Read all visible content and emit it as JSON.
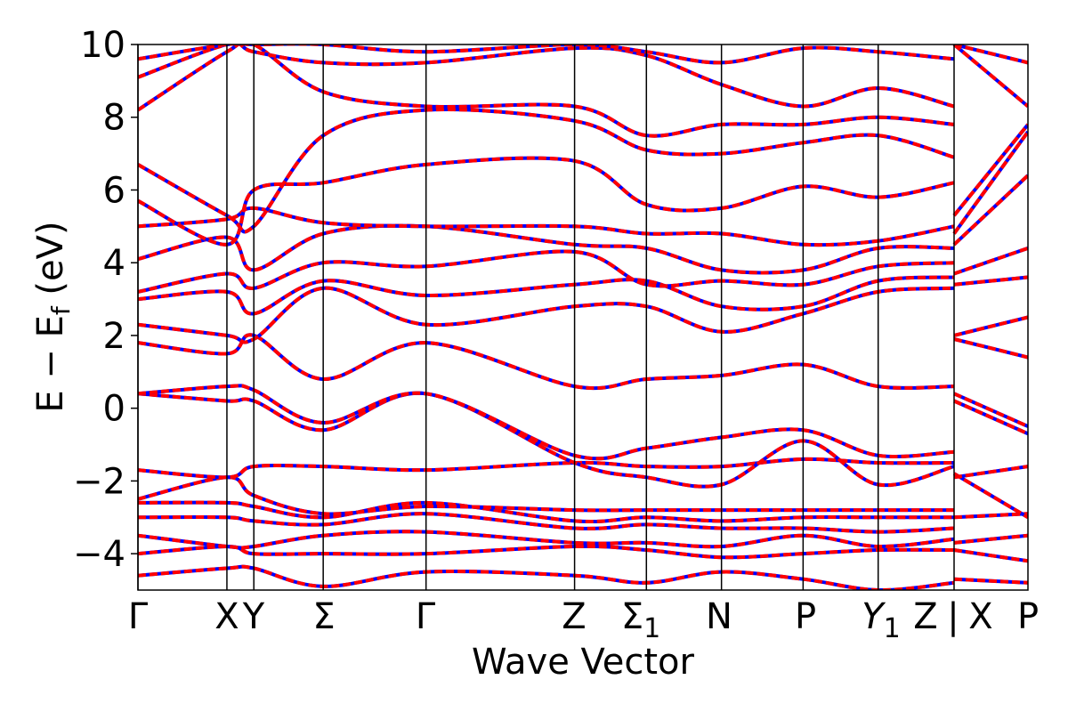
{
  "chart_data": {
    "type": "line",
    "title": "",
    "xlabel": "Wave Vector",
    "ylabel": "E − E",
    "ylabel_subscript": "f",
    "ylabel_unit": "(eV)",
    "ylim": [
      -5,
      10
    ],
    "x_range": [
      0,
      1
    ],
    "yticks": [
      -4,
      -2,
      0,
      2,
      4,
      6,
      8,
      10
    ],
    "ytick_labels": [
      "−4",
      "−2",
      "0",
      "2",
      "4",
      "6",
      "8",
      "10"
    ],
    "grid": false,
    "legend": "none",
    "colors": {
      "band_solid": "#0000ff",
      "band_dashed": "#ff0000",
      "divider": "#000000"
    },
    "kpoints": [
      {
        "x": 0.0,
        "label": "Γ"
      },
      {
        "x": 0.109,
        "label": "X"
      },
      {
        "x": 0.142,
        "label": "Y"
      },
      {
        "x": 0.227,
        "label": "Σ"
      },
      {
        "x": 0.353,
        "label": "Γ"
      },
      {
        "x": 0.535,
        "label": "Z"
      },
      {
        "x": 0.623,
        "label": "Σ",
        "sub": "1"
      },
      {
        "x": 0.715,
        "label": "N"
      },
      {
        "x": 0.815,
        "label": "P"
      },
      {
        "x": 0.907,
        "label": "Y",
        "sub": "1"
      },
      {
        "x": 1.0,
        "label": "Z"
      },
      {
        "x": 1.0,
        "label": "|"
      },
      {
        "x": 1.0,
        "label": "X"
      },
      {
        "x": 1.0,
        "label": "P"
      }
    ],
    "segment_breaks": [
      0.0,
      0.109,
      0.142,
      0.227,
      0.353,
      0.535,
      0.623,
      0.715,
      0.815,
      0.907,
      1.0
    ],
    "tail_segment": [
      1.0,
      1.09
    ],
    "bands": [
      {
        "name": "b1",
        "points": [
          [
            0,
            -4.6
          ],
          [
            0.109,
            -4.4
          ],
          [
            0.142,
            -4.4
          ],
          [
            0.227,
            -4.9
          ],
          [
            0.353,
            -4.5
          ],
          [
            0.535,
            -4.6
          ],
          [
            0.623,
            -4.8
          ],
          [
            0.715,
            -4.5
          ],
          [
            0.815,
            -4.7
          ],
          [
            0.907,
            -5.0
          ],
          [
            1.0,
            -4.8
          ]
        ]
      },
      {
        "name": "b2",
        "points": [
          [
            0,
            -4.0
          ],
          [
            0.109,
            -3.8
          ],
          [
            0.142,
            -4.0
          ],
          [
            0.227,
            -4.0
          ],
          [
            0.353,
            -4.0
          ],
          [
            0.535,
            -3.8
          ],
          [
            0.623,
            -3.9
          ],
          [
            0.715,
            -4.1
          ],
          [
            0.815,
            -4.0
          ],
          [
            0.907,
            -3.9
          ],
          [
            1.0,
            -3.9
          ]
        ]
      },
      {
        "name": "b3",
        "points": [
          [
            0,
            -3.5
          ],
          [
            0.109,
            -3.8
          ],
          [
            0.142,
            -3.8
          ],
          [
            0.227,
            -3.5
          ],
          [
            0.353,
            -3.4
          ],
          [
            0.535,
            -3.7
          ],
          [
            0.623,
            -3.7
          ],
          [
            0.715,
            -3.8
          ],
          [
            0.815,
            -3.5
          ],
          [
            0.907,
            -3.8
          ],
          [
            1.0,
            -3.6
          ]
        ]
      },
      {
        "name": "b4",
        "points": [
          [
            0,
            -3.0
          ],
          [
            0.109,
            -3.0
          ],
          [
            0.142,
            -3.1
          ],
          [
            0.227,
            -3.2
          ],
          [
            0.353,
            -2.9
          ],
          [
            0.535,
            -3.3
          ],
          [
            0.623,
            -3.2
          ],
          [
            0.715,
            -3.3
          ],
          [
            0.815,
            -3.3
          ],
          [
            0.907,
            -3.4
          ],
          [
            1.0,
            -3.3
          ]
        ]
      },
      {
        "name": "b5",
        "points": [
          [
            0,
            -2.6
          ],
          [
            0.109,
            -2.6
          ],
          [
            0.142,
            -2.7
          ],
          [
            0.227,
            -3.0
          ],
          [
            0.353,
            -2.6
          ],
          [
            0.535,
            -3.1
          ],
          [
            0.623,
            -3.0
          ],
          [
            0.715,
            -3.1
          ],
          [
            0.815,
            -3.0
          ],
          [
            0.907,
            -3.0
          ],
          [
            1.0,
            -3.0
          ]
        ]
      },
      {
        "name": "b6",
        "points": [
          [
            0,
            -2.5
          ],
          [
            0.109,
            -1.9
          ],
          [
            0.142,
            -2.4
          ],
          [
            0.227,
            -2.9
          ],
          [
            0.353,
            -2.7
          ],
          [
            0.535,
            -2.8
          ],
          [
            0.623,
            -2.8
          ],
          [
            0.715,
            -2.8
          ],
          [
            0.815,
            -2.8
          ],
          [
            0.907,
            -2.8
          ],
          [
            1.0,
            -2.8
          ]
        ]
      },
      {
        "name": "b7",
        "points": [
          [
            0,
            -1.7
          ],
          [
            0.109,
            -1.9
          ],
          [
            0.142,
            -1.6
          ],
          [
            0.227,
            -1.6
          ],
          [
            0.353,
            -1.7
          ],
          [
            0.535,
            -1.5
          ],
          [
            0.623,
            -1.6
          ],
          [
            0.715,
            -1.6
          ],
          [
            0.815,
            -1.4
          ],
          [
            0.907,
            -1.5
          ],
          [
            1.0,
            -1.5
          ]
        ]
      },
      {
        "name": "b8",
        "points": [
          [
            0,
            0.4
          ],
          [
            0.109,
            0.2
          ],
          [
            0.142,
            0.2
          ],
          [
            0.227,
            -0.6
          ],
          [
            0.353,
            0.4
          ],
          [
            0.535,
            -1.5
          ],
          [
            0.623,
            -1.9
          ],
          [
            0.715,
            -2.1
          ],
          [
            0.815,
            -0.9
          ],
          [
            0.907,
            -2.1
          ],
          [
            1.0,
            -1.6
          ]
        ]
      },
      {
        "name": "b9",
        "points": [
          [
            0,
            0.4
          ],
          [
            0.109,
            0.6
          ],
          [
            0.142,
            0.5
          ],
          [
            0.227,
            -0.4
          ],
          [
            0.353,
            0.4
          ],
          [
            0.535,
            -1.3
          ],
          [
            0.623,
            -1.1
          ],
          [
            0.715,
            -0.8
          ],
          [
            0.815,
            -0.6
          ],
          [
            0.907,
            -1.3
          ],
          [
            1.0,
            -1.2
          ]
        ]
      },
      {
        "name": "b10",
        "points": [
          [
            0,
            1.8
          ],
          [
            0.109,
            1.5
          ],
          [
            0.142,
            2.0
          ],
          [
            0.227,
            0.8
          ],
          [
            0.353,
            1.8
          ],
          [
            0.535,
            0.6
          ],
          [
            0.623,
            0.8
          ],
          [
            0.715,
            0.9
          ],
          [
            0.815,
            1.2
          ],
          [
            0.907,
            0.6
          ],
          [
            1.0,
            0.6
          ]
        ]
      },
      {
        "name": "b11",
        "points": [
          [
            0,
            2.3
          ],
          [
            0.109,
            2.0
          ],
          [
            0.142,
            1.9
          ],
          [
            0.227,
            3.3
          ],
          [
            0.353,
            2.3
          ],
          [
            0.535,
            2.8
          ],
          [
            0.623,
            2.8
          ],
          [
            0.715,
            2.1
          ],
          [
            0.815,
            2.6
          ],
          [
            0.907,
            3.2
          ],
          [
            1.0,
            3.3
          ]
        ]
      },
      {
        "name": "b12",
        "points": [
          [
            0,
            3.0
          ],
          [
            0.109,
            3.2
          ],
          [
            0.142,
            2.6
          ],
          [
            0.227,
            3.5
          ],
          [
            0.353,
            3.1
          ],
          [
            0.535,
            3.4
          ],
          [
            0.623,
            3.5
          ],
          [
            0.715,
            2.8
          ],
          [
            0.815,
            2.8
          ],
          [
            0.907,
            3.5
          ],
          [
            1.0,
            3.6
          ]
        ]
      },
      {
        "name": "b13",
        "points": [
          [
            0,
            3.2
          ],
          [
            0.109,
            3.7
          ],
          [
            0.142,
            3.3
          ],
          [
            0.227,
            4.0
          ],
          [
            0.353,
            3.9
          ],
          [
            0.535,
            4.3
          ],
          [
            0.623,
            3.4
          ],
          [
            0.715,
            3.5
          ],
          [
            0.815,
            3.4
          ],
          [
            0.907,
            3.9
          ],
          [
            1.0,
            4.0
          ]
        ]
      },
      {
        "name": "b14",
        "points": [
          [
            0,
            4.1
          ],
          [
            0.109,
            4.7
          ],
          [
            0.142,
            3.8
          ],
          [
            0.227,
            4.8
          ],
          [
            0.353,
            5.0
          ],
          [
            0.535,
            4.5
          ],
          [
            0.623,
            4.4
          ],
          [
            0.715,
            3.8
          ],
          [
            0.815,
            3.8
          ],
          [
            0.907,
            4.4
          ],
          [
            1.0,
            4.4
          ]
        ]
      },
      {
        "name": "b15",
        "points": [
          [
            0,
            5.0
          ],
          [
            0.109,
            5.2
          ],
          [
            0.142,
            5.5
          ],
          [
            0.227,
            5.1
          ],
          [
            0.353,
            5.0
          ],
          [
            0.535,
            5.0
          ],
          [
            0.623,
            4.8
          ],
          [
            0.715,
            4.8
          ],
          [
            0.815,
            4.5
          ],
          [
            0.907,
            4.6
          ],
          [
            1.0,
            5.0
          ]
        ]
      },
      {
        "name": "b16",
        "points": [
          [
            0,
            5.7
          ],
          [
            0.109,
            4.5
          ],
          [
            0.142,
            6.0
          ],
          [
            0.227,
            6.2
          ],
          [
            0.353,
            6.7
          ],
          [
            0.535,
            6.8
          ],
          [
            0.623,
            5.6
          ],
          [
            0.715,
            5.5
          ],
          [
            0.815,
            6.1
          ],
          [
            0.907,
            5.8
          ],
          [
            1.0,
            6.2
          ]
        ]
      },
      {
        "name": "b17",
        "points": [
          [
            0,
            6.7
          ],
          [
            0.109,
            5.3
          ],
          [
            0.142,
            5.0
          ],
          [
            0.227,
            7.5
          ],
          [
            0.353,
            8.2
          ],
          [
            0.535,
            7.9
          ],
          [
            0.623,
            7.1
          ],
          [
            0.715,
            7.0
          ],
          [
            0.815,
            7.3
          ],
          [
            0.907,
            7.5
          ],
          [
            1.0,
            6.9
          ]
        ]
      },
      {
        "name": "b18",
        "points": [
          [
            0,
            8.2
          ],
          [
            0.109,
            9.8
          ],
          [
            0.142,
            10.0
          ],
          [
            0.227,
            8.7
          ],
          [
            0.353,
            8.3
          ],
          [
            0.535,
            8.3
          ],
          [
            0.623,
            7.5
          ],
          [
            0.715,
            7.8
          ],
          [
            0.815,
            7.8
          ],
          [
            0.907,
            8.0
          ],
          [
            1.0,
            7.8
          ]
        ]
      },
      {
        "name": "b19",
        "points": [
          [
            0,
            9.1
          ],
          [
            0.109,
            10.0
          ],
          [
            0.142,
            9.8
          ],
          [
            0.227,
            9.5
          ],
          [
            0.353,
            9.5
          ],
          [
            0.535,
            9.9
          ],
          [
            0.623,
            9.7
          ],
          [
            0.715,
            8.9
          ],
          [
            0.815,
            8.3
          ],
          [
            0.907,
            8.8
          ],
          [
            1.0,
            8.3
          ]
        ]
      },
      {
        "name": "b20",
        "points": [
          [
            0,
            9.6
          ],
          [
            0.109,
            10.0
          ],
          [
            0.142,
            10.0
          ],
          [
            0.227,
            10.0
          ],
          [
            0.353,
            9.8
          ],
          [
            0.535,
            10.0
          ],
          [
            0.623,
            9.8
          ],
          [
            0.715,
            9.5
          ],
          [
            0.815,
            9.9
          ],
          [
            0.907,
            9.8
          ],
          [
            1.0,
            9.6
          ]
        ]
      }
    ],
    "tail_bands": [
      {
        "name": "t1",
        "points": [
          [
            0,
            -4.7
          ],
          [
            1,
            -4.8
          ]
        ]
      },
      {
        "name": "t2",
        "points": [
          [
            0,
            -3.9
          ],
          [
            1,
            -4.2
          ]
        ]
      },
      {
        "name": "t3",
        "points": [
          [
            0,
            -3.7
          ],
          [
            1,
            -3.5
          ]
        ]
      },
      {
        "name": "t4",
        "points": [
          [
            0,
            -3.0
          ],
          [
            1,
            -2.9
          ]
        ]
      },
      {
        "name": "t5",
        "points": [
          [
            0,
            -1.8
          ],
          [
            1,
            -3.0
          ]
        ]
      },
      {
        "name": "t6",
        "points": [
          [
            0,
            -1.9
          ],
          [
            1,
            -1.6
          ]
        ]
      },
      {
        "name": "t7",
        "points": [
          [
            0,
            0.2
          ],
          [
            1,
            -0.7
          ]
        ]
      },
      {
        "name": "t8",
        "points": [
          [
            0,
            0.4
          ],
          [
            1,
            -0.5
          ]
        ]
      },
      {
        "name": "t9",
        "points": [
          [
            0,
            1.9
          ],
          [
            1,
            1.4
          ]
        ]
      },
      {
        "name": "t10",
        "points": [
          [
            0,
            2.0
          ],
          [
            1,
            2.5
          ]
        ]
      },
      {
        "name": "t11",
        "points": [
          [
            0,
            3.4
          ],
          [
            1,
            3.6
          ]
        ]
      },
      {
        "name": "t12",
        "points": [
          [
            0,
            3.7
          ],
          [
            1,
            4.4
          ]
        ]
      },
      {
        "name": "t13",
        "points": [
          [
            0,
            4.5
          ],
          [
            1,
            6.4
          ]
        ]
      },
      {
        "name": "t14",
        "points": [
          [
            0,
            4.8
          ],
          [
            1,
            7.6
          ]
        ]
      },
      {
        "name": "t15",
        "points": [
          [
            0,
            5.3
          ],
          [
            1,
            7.8
          ]
        ]
      },
      {
        "name": "t16",
        "points": [
          [
            0,
            10.0
          ],
          [
            1,
            9.5
          ]
        ]
      },
      {
        "name": "t17",
        "points": [
          [
            0,
            10.0
          ],
          [
            1,
            8.3
          ]
        ]
      }
    ]
  }
}
